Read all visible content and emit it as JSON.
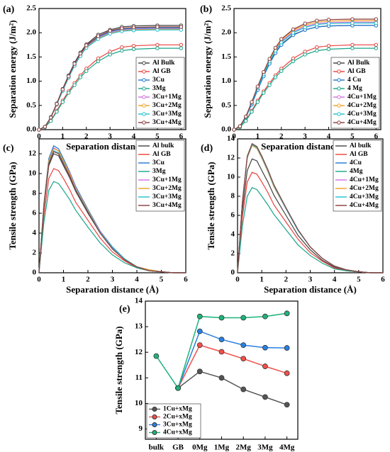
{
  "chart_data": [
    {
      "type": "line",
      "label": "(a)",
      "xlabel": "Separation distance (Å)",
      "ylabel": "Separation energy (J/m²)",
      "xlim": [
        0,
        6.2
      ],
      "ylim": [
        0,
        2.5
      ],
      "xticks": [
        0,
        1,
        2,
        3,
        4,
        5,
        6
      ],
      "yticks": [
        {
          "value": 0,
          "label": "0.0"
        },
        0.5,
        {
          "value": 1,
          "label": "1.0"
        },
        1.5,
        {
          "value": 2,
          "label": "2.0"
        },
        2.5
      ],
      "markers": true,
      "legend": "lower right",
      "x": [
        0,
        0.25,
        0.5,
        0.75,
        1,
        1.25,
        1.5,
        1.75,
        2,
        2.5,
        3,
        3.5,
        4,
        5,
        6
      ],
      "series": [
        {
          "name": "Al Bulk",
          "color": "#404040",
          "values": [
            0,
            0.06,
            0.26,
            0.54,
            0.84,
            1.12,
            1.38,
            1.59,
            1.76,
            1.96,
            2.06,
            2.12,
            2.14,
            2.15,
            2.15
          ]
        },
        {
          "name": "Al GB",
          "color": "#e8413c",
          "values": [
            0,
            0.05,
            0.19,
            0.39,
            0.6,
            0.79,
            0.96,
            1.12,
            1.26,
            1.47,
            1.61,
            1.7,
            1.73,
            1.75,
            1.75
          ]
        },
        {
          "name": "3Cu",
          "color": "#1f77d0",
          "values": [
            0,
            0.06,
            0.25,
            0.53,
            0.82,
            1.09,
            1.34,
            1.55,
            1.72,
            1.91,
            2.02,
            2.07,
            2.09,
            2.1,
            2.1
          ]
        },
        {
          "name": "3Mg",
          "color": "#17a589",
          "values": [
            0,
            0.05,
            0.18,
            0.37,
            0.57,
            0.76,
            0.92,
            1.08,
            1.21,
            1.41,
            1.55,
            1.63,
            1.66,
            1.68,
            1.68
          ]
        },
        {
          "name": "3Cu+1Mg",
          "color": "#d070e0",
          "values": [
            0,
            0.06,
            0.25,
            0.52,
            0.81,
            1.08,
            1.33,
            1.54,
            1.71,
            1.89,
            2.0,
            2.05,
            2.07,
            2.08,
            2.08
          ]
        },
        {
          "name": "3Cu+2Mg",
          "color": "#f0a020",
          "values": [
            0,
            0.06,
            0.25,
            0.52,
            0.81,
            1.08,
            1.32,
            1.53,
            1.7,
            1.88,
            1.99,
            2.04,
            2.06,
            2.07,
            2.07
          ]
        },
        {
          "name": "3Cu+3Mg",
          "color": "#20c0d0",
          "values": [
            0,
            0.06,
            0.25,
            0.52,
            0.8,
            1.07,
            1.32,
            1.52,
            1.69,
            1.87,
            1.98,
            2.03,
            2.05,
            2.06,
            2.06
          ]
        },
        {
          "name": "3Cu+4Mg",
          "color": "#8b3a3a",
          "values": [
            0,
            0.06,
            0.25,
            0.53,
            0.83,
            1.1,
            1.36,
            1.57,
            1.74,
            1.93,
            2.04,
            2.09,
            2.11,
            2.12,
            2.12
          ]
        }
      ]
    },
    {
      "type": "line",
      "label": "(b)",
      "xlabel": "Separation distance (Å)",
      "ylabel": "Separation energy (J/m²)",
      "xlim": [
        0,
        6.2
      ],
      "ylim": [
        0,
        2.5
      ],
      "xticks": [
        0,
        1,
        2,
        3,
        4,
        5,
        6
      ],
      "yticks": [
        {
          "value": 0,
          "label": "0.0"
        },
        0.5,
        {
          "value": 1,
          "label": "1.0"
        },
        1.5,
        {
          "value": 2,
          "label": "2.0"
        },
        2.5
      ],
      "markers": true,
      "legend": "lower right",
      "x": [
        0,
        0.25,
        0.5,
        0.75,
        1,
        1.25,
        1.5,
        1.75,
        2,
        2.5,
        3,
        3.5,
        4,
        5,
        6
      ],
      "series": [
        {
          "name": "Al Bulk",
          "color": "#404040",
          "values": [
            0,
            0.06,
            0.26,
            0.54,
            0.84,
            1.12,
            1.38,
            1.59,
            1.76,
            1.96,
            2.06,
            2.12,
            2.14,
            2.15,
            2.15
          ]
        },
        {
          "name": "Al GB",
          "color": "#e8413c",
          "values": [
            0,
            0.05,
            0.19,
            0.39,
            0.6,
            0.79,
            0.96,
            1.12,
            1.26,
            1.47,
            1.61,
            1.7,
            1.73,
            1.75,
            1.75
          ]
        },
        {
          "name": "4 Cu",
          "color": "#1f77d0",
          "values": [
            0,
            0.06,
            0.25,
            0.52,
            0.82,
            1.1,
            1.36,
            1.58,
            1.75,
            1.95,
            2.06,
            2.12,
            2.14,
            2.15,
            2.15
          ]
        },
        {
          "name": "4 Mg",
          "color": "#17a589",
          "values": [
            0,
            0.05,
            0.18,
            0.37,
            0.57,
            0.76,
            0.92,
            1.08,
            1.21,
            1.41,
            1.55,
            1.63,
            1.66,
            1.68,
            1.68
          ]
        },
        {
          "name": "4Cu+1Mg",
          "color": "#d070e0",
          "values": [
            0,
            0.07,
            0.27,
            0.56,
            0.87,
            1.15,
            1.42,
            1.64,
            1.82,
            2.02,
            2.13,
            2.19,
            2.21,
            2.22,
            2.22
          ]
        },
        {
          "name": "4Cu+2Mg",
          "color": "#f0a020",
          "values": [
            0,
            0.07,
            0.27,
            0.56,
            0.88,
            1.17,
            1.44,
            1.67,
            1.85,
            2.05,
            2.16,
            2.22,
            2.24,
            2.25,
            2.25
          ]
        },
        {
          "name": "4Cu+3Mg",
          "color": "#20c0d0",
          "values": [
            0,
            0.07,
            0.26,
            0.55,
            0.86,
            1.14,
            1.41,
            1.63,
            1.8,
            2.0,
            2.11,
            2.17,
            2.19,
            2.2,
            2.2
          ]
        },
        {
          "name": "4Cu+4Mg",
          "color": "#8b3a3a",
          "values": [
            0,
            0.07,
            0.27,
            0.57,
            0.89,
            1.19,
            1.46,
            1.69,
            1.87,
            2.07,
            2.19,
            2.25,
            2.27,
            2.28,
            2.28
          ]
        }
      ]
    },
    {
      "type": "line",
      "label": "(c)",
      "xlabel": "Separation distance (Å)",
      "ylabel": "Tensile strength (GPa)",
      "xlim": [
        0,
        6
      ],
      "ylim": [
        0,
        13.5
      ],
      "xticks": [
        0,
        1,
        2,
        3,
        4,
        5,
        6
      ],
      "yticks": [
        0,
        2,
        4,
        6,
        8,
        10,
        12
      ],
      "markers": false,
      "legend": "upper right",
      "x": [
        0,
        0.2,
        0.4,
        0.6,
        0.8,
        1,
        1.25,
        1.5,
        2,
        2.5,
        3,
        3.5,
        4,
        4.5,
        5,
        5.5,
        6
      ],
      "series": [
        {
          "name": "Al bulk",
          "color": "#404040",
          "values": [
            0,
            6.6,
            10.8,
            12.0,
            11.8,
            10.8,
            9.6,
            8.2,
            6.0,
            4.0,
            2.4,
            1.3,
            0.6,
            0.2,
            0.1,
            0,
            0
          ]
        },
        {
          "name": "Al GB",
          "color": "#e8413c",
          "values": [
            0,
            5.8,
            9.5,
            10.5,
            10.3,
            9.5,
            8.4,
            7.1,
            5.3,
            3.5,
            2.1,
            1.2,
            0.5,
            0.2,
            0.1,
            0,
            0
          ]
        },
        {
          "name": "3Cu",
          "color": "#1f77d0",
          "values": [
            0,
            7.0,
            11.5,
            12.8,
            12.5,
            11.5,
            10.2,
            8.7,
            6.4,
            4.2,
            2.6,
            1.4,
            0.6,
            0.3,
            0.1,
            0,
            0
          ]
        },
        {
          "name": "3Mg",
          "color": "#17a589",
          "values": [
            0,
            5.1,
            8.3,
            9.2,
            9.0,
            8.3,
            7.4,
            6.3,
            4.6,
            3.0,
            1.8,
            1.0,
            0.5,
            0.2,
            0.1,
            0,
            0
          ]
        },
        {
          "name": "3Cu+1Mg",
          "color": "#d070e0",
          "values": [
            0,
            6.9,
            11.3,
            12.6,
            12.3,
            11.3,
            10.1,
            8.6,
            6.3,
            4.2,
            2.5,
            1.4,
            0.6,
            0.3,
            0.1,
            0,
            0
          ]
        },
        {
          "name": "3Cu+2Mg",
          "color": "#f0a020",
          "values": [
            0,
            6.9,
            11.3,
            12.5,
            12.3,
            11.3,
            10.0,
            8.5,
            6.3,
            4.1,
            2.5,
            1.4,
            0.6,
            0.3,
            0.1,
            0,
            0
          ]
        },
        {
          "name": "3Cu+3Mg",
          "color": "#20c0d0",
          "values": [
            0,
            6.8,
            11.1,
            12.3,
            12.1,
            11.1,
            9.8,
            8.4,
            6.2,
            4.1,
            2.5,
            1.4,
            0.6,
            0.2,
            0.1,
            0,
            0
          ]
        },
        {
          "name": "3Cu+4Mg",
          "color": "#8b3a3a",
          "values": [
            0,
            6.7,
            11.0,
            12.2,
            12.0,
            11.0,
            9.8,
            8.3,
            6.1,
            4.0,
            2.4,
            1.3,
            0.6,
            0.2,
            0.1,
            0,
            0
          ]
        }
      ]
    },
    {
      "type": "line",
      "label": "(d)",
      "xlabel": "Separation distance (Å)",
      "ylabel": "Tensile strength (GPa)",
      "xlim": [
        0,
        6
      ],
      "ylim": [
        0,
        14
      ],
      "xticks": [
        0,
        1,
        2,
        3,
        4,
        5,
        6
      ],
      "yticks": [
        0,
        2,
        4,
        6,
        8,
        10,
        12,
        14
      ],
      "markers": false,
      "legend": "upper right",
      "x": [
        0,
        0.2,
        0.4,
        0.6,
        0.8,
        1,
        1.25,
        1.5,
        2,
        2.5,
        3,
        3.5,
        4,
        4.5,
        5,
        5.5,
        6
      ],
      "series": [
        {
          "name": "Al bulk",
          "color": "#404040",
          "values": [
            0,
            6.5,
            10.7,
            11.9,
            11.7,
            10.7,
            9.5,
            8.1,
            6.0,
            3.9,
            2.4,
            1.3,
            0.6,
            0.2,
            0.1,
            0,
            0
          ]
        },
        {
          "name": "Al GB",
          "color": "#e8413c",
          "values": [
            0,
            5.8,
            9.5,
            10.5,
            10.3,
            9.5,
            8.4,
            7.1,
            5.3,
            3.5,
            2.1,
            1.2,
            0.5,
            0.2,
            0.1,
            0,
            0
          ]
        },
        {
          "name": "4Cu",
          "color": "#1f77d0",
          "values": [
            0,
            7.3,
            12.0,
            13.3,
            13.0,
            12.0,
            10.6,
            9.0,
            6.7,
            4.4,
            2.7,
            1.5,
            0.7,
            0.3,
            0.1,
            0,
            0
          ]
        },
        {
          "name": "4Mg",
          "color": "#17a589",
          "values": [
            0,
            4.9,
            8.0,
            8.9,
            8.7,
            8.0,
            7.1,
            6.1,
            4.5,
            2.9,
            1.8,
            1.0,
            0.4,
            0.2,
            0.1,
            0,
            0
          ]
        },
        {
          "name": "4Cu+1Mg",
          "color": "#d070e0",
          "values": [
            0,
            7.4,
            12.1,
            13.4,
            13.1,
            12.1,
            10.7,
            9.1,
            6.7,
            4.4,
            2.7,
            1.5,
            0.7,
            0.3,
            0.1,
            0,
            0
          ]
        },
        {
          "name": "4Cu+2Mg",
          "color": "#f0a020",
          "values": [
            0,
            7.3,
            12.0,
            13.3,
            13.0,
            12.0,
            10.6,
            9.0,
            6.7,
            4.4,
            2.7,
            1.5,
            0.7,
            0.3,
            0.1,
            0,
            0
          ]
        },
        {
          "name": "4Cu+3Mg",
          "color": "#20c0d0",
          "values": [
            0,
            7.4,
            12.1,
            13.4,
            13.1,
            12.1,
            10.7,
            9.1,
            6.7,
            4.4,
            2.7,
            1.5,
            0.7,
            0.3,
            0.1,
            0,
            0
          ]
        },
        {
          "name": "4Cu+4Mg",
          "color": "#8b3a3a",
          "values": [
            0,
            7.4,
            12.2,
            13.5,
            13.2,
            12.2,
            10.8,
            9.2,
            6.8,
            4.5,
            2.7,
            1.5,
            0.7,
            0.3,
            0.1,
            0,
            0
          ]
        }
      ]
    },
    {
      "type": "line",
      "label": "(e)",
      "ylabel": "Tensile strength (GPa)",
      "categories": [
        "bulk",
        "GB",
        "0Mg",
        "1Mg",
        "2Mg",
        "3Mg",
        "4Mg"
      ],
      "ylim": [
        8.6,
        14
      ],
      "yticks": [
        9,
        10,
        11,
        12,
        13,
        14
      ],
      "markers": true,
      "legend": "lower left",
      "series": [
        {
          "name": "1Cu+xMg",
          "color": "#555555",
          "values": [
            null,
            10.6,
            11.25,
            11.0,
            10.55,
            10.25,
            9.95
          ]
        },
        {
          "name": "2Cu+xMg",
          "color": "#f0504a",
          "values": [
            null,
            10.6,
            12.28,
            12.02,
            11.75,
            11.45,
            11.18
          ]
        },
        {
          "name": "3Cu+xMg",
          "color": "#2a80e0",
          "values": [
            null,
            10.6,
            12.82,
            12.5,
            12.28,
            12.18,
            12.17
          ]
        },
        {
          "name": "4Cu+xMg",
          "color": "#1fb37a",
          "values": [
            11.85,
            10.6,
            13.4,
            13.35,
            13.35,
            13.4,
            13.52
          ]
        }
      ]
    }
  ]
}
